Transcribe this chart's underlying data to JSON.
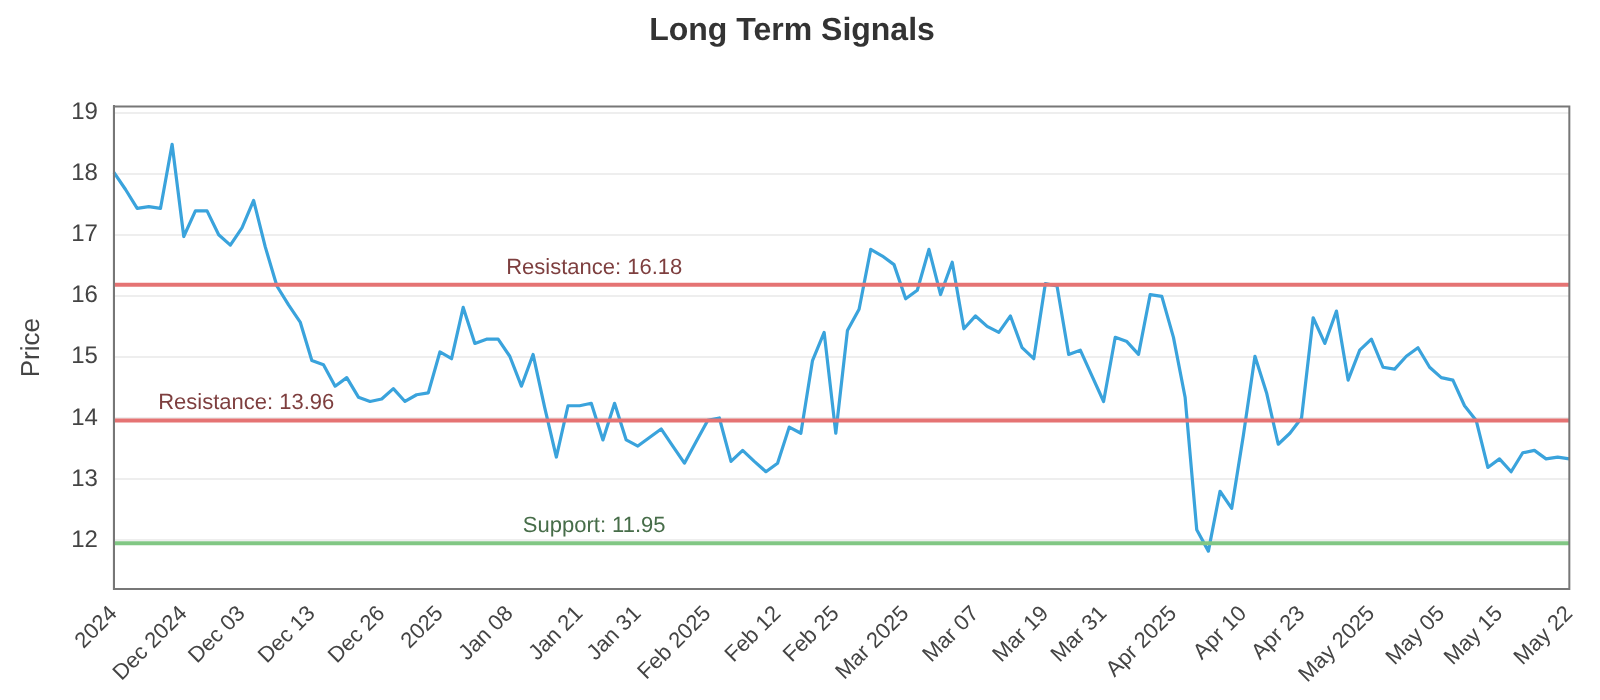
{
  "chart_data": {
    "type": "line",
    "title": "Long Term Signals",
    "ylabel": "Price",
    "categories": [
      "2024",
      null,
      null,
      null,
      null,
      null,
      "Dec 2024",
      null,
      null,
      null,
      null,
      "Dec 03",
      null,
      null,
      null,
      null,
      null,
      "Dec 13",
      null,
      null,
      null,
      null,
      null,
      "Dec 26",
      null,
      null,
      null,
      null,
      "2025",
      null,
      null,
      null,
      null,
      null,
      "Jan 08",
      null,
      null,
      null,
      null,
      null,
      "Jan 21",
      null,
      null,
      null,
      null,
      "Jan 31",
      null,
      null,
      null,
      null,
      null,
      "Feb 2025",
      null,
      null,
      null,
      null,
      null,
      "Feb 12",
      null,
      null,
      null,
      null,
      "Feb 25",
      null,
      null,
      null,
      null,
      null,
      "Mar 2025",
      null,
      null,
      null,
      null,
      null,
      "Mar 07",
      null,
      null,
      null,
      null,
      null,
      "Mar 19",
      null,
      null,
      null,
      null,
      "Mar 31",
      null,
      null,
      null,
      null,
      null,
      "Apr 2025",
      null,
      null,
      null,
      null,
      null,
      "Apr 10",
      null,
      null,
      null,
      null,
      "Apr 23",
      null,
      null,
      null,
      null,
      null,
      "May 2025",
      null,
      null,
      null,
      null,
      null,
      "May 05",
      null,
      null,
      null,
      null,
      "May 15",
      null,
      null,
      null,
      null,
      null,
      "May 22"
    ],
    "series": [
      {
        "color": "#3aa3dc",
        "values": [
          18.02,
          17.74,
          17.43,
          17.46,
          17.43,
          18.48,
          16.97,
          17.39,
          17.39,
          17.0,
          16.83,
          17.11,
          17.56,
          16.8,
          16.16,
          15.85,
          15.57,
          14.94,
          14.87,
          14.52,
          14.66,
          14.34,
          14.27,
          14.31,
          14.48,
          14.27,
          14.38,
          14.41,
          15.08,
          14.97,
          15.81,
          15.22,
          15.29,
          15.29,
          15.01,
          14.52,
          15.04,
          14.17,
          13.36,
          14.2,
          14.2,
          14.24,
          13.64,
          14.24,
          13.64,
          13.54,
          13.68,
          13.82,
          13.54,
          13.26,
          13.61,
          13.96,
          14.0,
          13.29,
          13.47,
          13.29,
          13.12,
          13.26,
          13.85,
          13.75,
          14.94,
          15.4,
          13.75,
          15.43,
          15.78,
          16.76,
          16.65,
          16.51,
          15.95,
          16.09,
          16.76,
          16.02,
          16.55,
          15.46,
          15.67,
          15.5,
          15.4,
          15.67,
          15.15,
          14.97,
          16.2,
          16.16,
          15.04,
          15.11,
          14.69,
          14.27,
          15.32,
          15.25,
          15.04,
          16.02,
          15.99,
          15.32,
          14.34,
          12.17,
          11.82,
          12.8,
          12.52,
          13.71,
          15.01,
          14.41,
          13.57,
          13.75,
          14.0,
          15.64,
          15.22,
          15.75,
          14.62,
          15.11,
          15.29,
          14.83,
          14.8,
          15.01,
          15.15,
          14.83,
          14.66,
          14.62,
          14.2,
          13.96,
          13.19,
          13.33,
          13.12,
          13.43,
          13.47,
          13.33,
          13.36,
          13.33
        ]
      }
    ],
    "ylim": [
      11.2,
      19.1
    ],
    "yticks": [
      12,
      13,
      14,
      15,
      16,
      17,
      18,
      19
    ],
    "grid": "y",
    "legend": false,
    "marker": "none",
    "line_style": "solid",
    "ref_lines": [
      {
        "axis": "y",
        "value": 16.18,
        "label": "Resistance: 16.18",
        "color": "#e57373"
      },
      {
        "axis": "y",
        "value": 13.96,
        "label": "Resistance: 13.96",
        "color": "#e57373"
      },
      {
        "axis": "y",
        "value": 11.95,
        "label": "Support: 11.95",
        "color": "#81c784"
      }
    ]
  }
}
